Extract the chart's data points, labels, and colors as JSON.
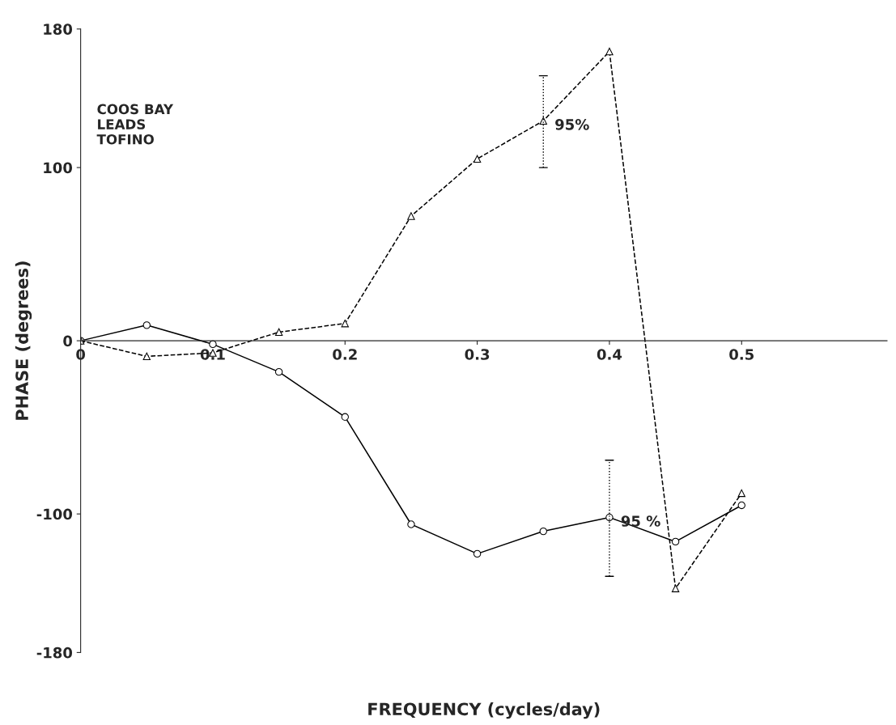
{
  "chart_data": {
    "type": "line",
    "xlabel": "FREQUENCY (cycles/day)",
    "ylabel": "PHASE (degrees)",
    "xlim": [
      0,
      0.61
    ],
    "ylim": [
      -180,
      180
    ],
    "xticks": [
      {
        "value": 0,
        "label": "0"
      },
      0.1,
      0.2,
      0.3,
      0.4,
      0.5
    ],
    "yticks": [
      -180,
      -100,
      0,
      100,
      180
    ],
    "x": [
      0,
      0.05,
      0.1,
      0.15,
      0.2,
      0.25,
      0.3,
      0.35,
      0.4,
      0.45,
      0.5
    ],
    "series": [
      {
        "color": "#000000",
        "marker": "circle",
        "line_style": "solid",
        "values": [
          0,
          9,
          -2,
          -18,
          -44,
          -106,
          -123,
          -110,
          -102,
          -116,
          -95
        ],
        "errors": [
          null,
          null,
          null,
          null,
          null,
          null,
          null,
          null,
          [
            -136,
            -69
          ],
          null,
          null
        ]
      },
      {
        "color": "#000000",
        "marker": "triangle",
        "line_style": "dashed",
        "values": [
          0,
          -9,
          -7,
          5,
          10,
          72,
          105,
          127,
          167,
          -143,
          -88
        ],
        "errors": [
          null,
          null,
          null,
          null,
          null,
          null,
          null,
          [
            100,
            153
          ],
          null,
          null,
          null
        ]
      }
    ],
    "annotations": [
      "COOS BAY\nLEADS\nTOFINO",
      {
        "text": "95%",
        "x": 0.35,
        "y": 127
      },
      {
        "text": "95 %",
        "x": 0.4,
        "y": -102
      }
    ],
    "grid": false,
    "legend": false
  }
}
